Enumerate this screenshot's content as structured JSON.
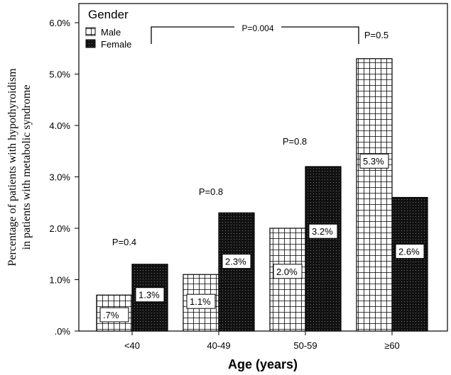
{
  "chart_data": {
    "type": "bar",
    "categories": [
      "<40",
      "40-49",
      "50-59",
      "≥60"
    ],
    "series": [
      {
        "name": "Male",
        "values": [
          0.7,
          1.1,
          2.0,
          5.3
        ],
        "labels": [
          ".7%",
          "1.1%",
          "2.0%",
          "5.3%"
        ],
        "pattern": "grid"
      },
      {
        "name": "Female",
        "values": [
          1.3,
          2.3,
          3.2,
          2.6
        ],
        "labels": [
          "1.3%",
          "2.3%",
          "3.2%",
          "2.6%"
        ],
        "pattern": "dots"
      }
    ],
    "xlabel": "Age (years)",
    "ylabel_lines": [
      "Percentage of patients with hypothyroidism",
      "in patients with metabolic syndrome"
    ],
    "ylim": [
      0,
      6
    ],
    "yticks": [
      ".0%",
      "1.0%",
      "2.0%",
      "3.0%",
      "4.0%",
      "5.0%",
      "6.0%"
    ],
    "legend": {
      "title": "Gender",
      "placement": "top-left"
    },
    "annotations": [
      "P=0.4",
      "P=0.8",
      "P=0.8",
      "P=0.5"
    ],
    "bracket_annotation": "P=0.004"
  }
}
